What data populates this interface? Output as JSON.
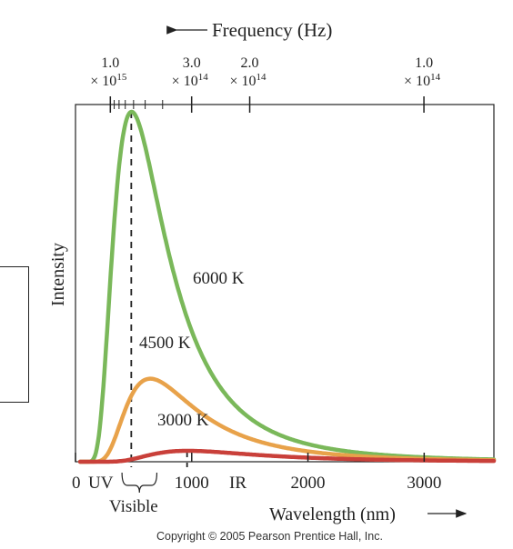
{
  "chart_data": {
    "type": "line",
    "title": "",
    "xlabel": "Wavelength (nm)",
    "ylabel": "Intensity",
    "xlim": [
      0,
      3600
    ],
    "x_ticks": [
      {
        "value": 0,
        "label": "0"
      },
      {
        "value": 1000,
        "label": "1000"
      },
      {
        "value": 2000,
        "label": "2000"
      },
      {
        "value": 3000,
        "label": "3000"
      }
    ],
    "top_axis": {
      "label": "Frequency (Hz)",
      "ticks": [
        {
          "frequency_hz": 1000000000000000.0,
          "mantissa": "1.0",
          "exponent": "15"
        },
        {
          "frequency_hz": 300000000000000.0,
          "mantissa": "3.0",
          "exponent": "14"
        },
        {
          "frequency_hz": 200000000000000.0,
          "mantissa": "2.0",
          "exponent": "14"
        },
        {
          "frequency_hz": 100000000000000.0,
          "mantissa": "1.0",
          "exponent": "14"
        }
      ],
      "minor_frequencies_hz": [
        900000000000000.0,
        800000000000000.0,
        700000000000000.0,
        600000000000000.0,
        500000000000000.0,
        400000000000000.0
      ]
    },
    "series": [
      {
        "name": "6000 K",
        "temperature_k": 6000,
        "color": "#7ab85a",
        "peak_nm": 480
      },
      {
        "name": "4500 K",
        "temperature_k": 4500,
        "color": "#e8a24a",
        "peak_nm": 640
      },
      {
        "name": "3000 K",
        "temperature_k": 3000,
        "color": "#c9403a",
        "peak_nm": 960
      }
    ],
    "region_labels": {
      "uv": "UV",
      "visible": "Visible",
      "ir": "IR"
    },
    "visible_range_nm": [
      400,
      700
    ]
  },
  "copyright": "Copyright © 2005 Pearson Prentice Hall, Inc."
}
